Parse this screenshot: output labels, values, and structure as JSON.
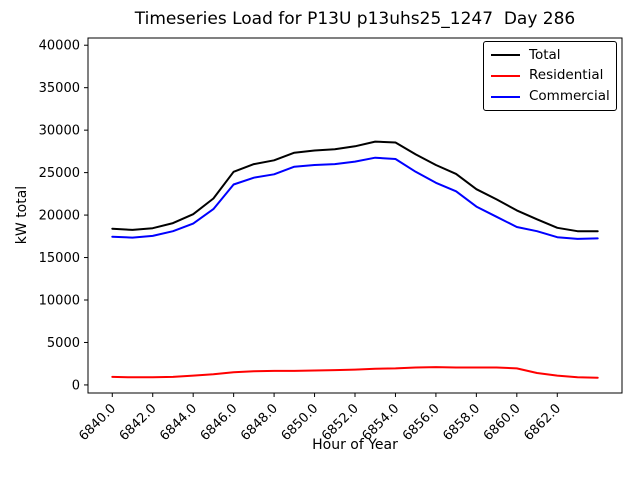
{
  "chart_data": {
    "type": "line",
    "title": "Timeseries Load for P13U p13uhs25_1247  Day 286",
    "xlabel": "Hour of Year",
    "ylabel": "kW total",
    "x": [
      6840,
      6841,
      6842,
      6843,
      6844,
      6845,
      6846,
      6847,
      6848,
      6849,
      6850,
      6851,
      6852,
      6853,
      6854,
      6855,
      6856,
      6857,
      6858,
      6859,
      6860,
      6861,
      6862,
      6863,
      6864
    ],
    "series": [
      {
        "name": "Total",
        "color": "#000000",
        "values": [
          18400,
          18250,
          18450,
          19050,
          20100,
          21950,
          25100,
          26000,
          26450,
          27350,
          27600,
          27750,
          28100,
          28650,
          28550,
          27150,
          25900,
          24850,
          23050,
          21850,
          20550,
          19500,
          18500,
          18100,
          18100
        ]
      },
      {
        "name": "Residential",
        "color": "#ff0000",
        "values": [
          950,
          900,
          900,
          950,
          1100,
          1250,
          1500,
          1600,
          1650,
          1650,
          1700,
          1750,
          1800,
          1900,
          1950,
          2050,
          2100,
          2050,
          2050,
          2050,
          1950,
          1400,
          1100,
          900,
          850
        ]
      },
      {
        "name": "Commercial",
        "color": "#0000ff",
        "values": [
          17450,
          17350,
          17550,
          18100,
          19000,
          20700,
          23600,
          24400,
          24800,
          25700,
          25900,
          26000,
          26300,
          26750,
          26600,
          25100,
          23800,
          22800,
          21000,
          19800,
          18600,
          18100,
          17400,
          17200,
          17250
        ]
      }
    ],
    "xticks": [
      6840,
      6842,
      6844,
      6846,
      6848,
      6850,
      6852,
      6854,
      6856,
      6858,
      6860,
      6862
    ],
    "xtick_labels": [
      "6840.0",
      "6842.0",
      "6844.0",
      "6846.0",
      "6848.0",
      "6850.0",
      "6852.0",
      "6854.0",
      "6856.0",
      "6858.0",
      "6860.0",
      "6862.0"
    ],
    "yticks": [
      0,
      5000,
      10000,
      15000,
      20000,
      25000,
      30000,
      35000,
      40000
    ],
    "ytick_labels": [
      "0",
      "5000",
      "10000",
      "15000",
      "20000",
      "25000",
      "30000",
      "35000",
      "40000"
    ],
    "xlim": [
      6838.8,
      6865.2
    ],
    "ylim": [
      -950,
      40850
    ],
    "legend_position": "upper right",
    "grid": false,
    "background": "#ffffff",
    "xtick_rotation": 45
  }
}
